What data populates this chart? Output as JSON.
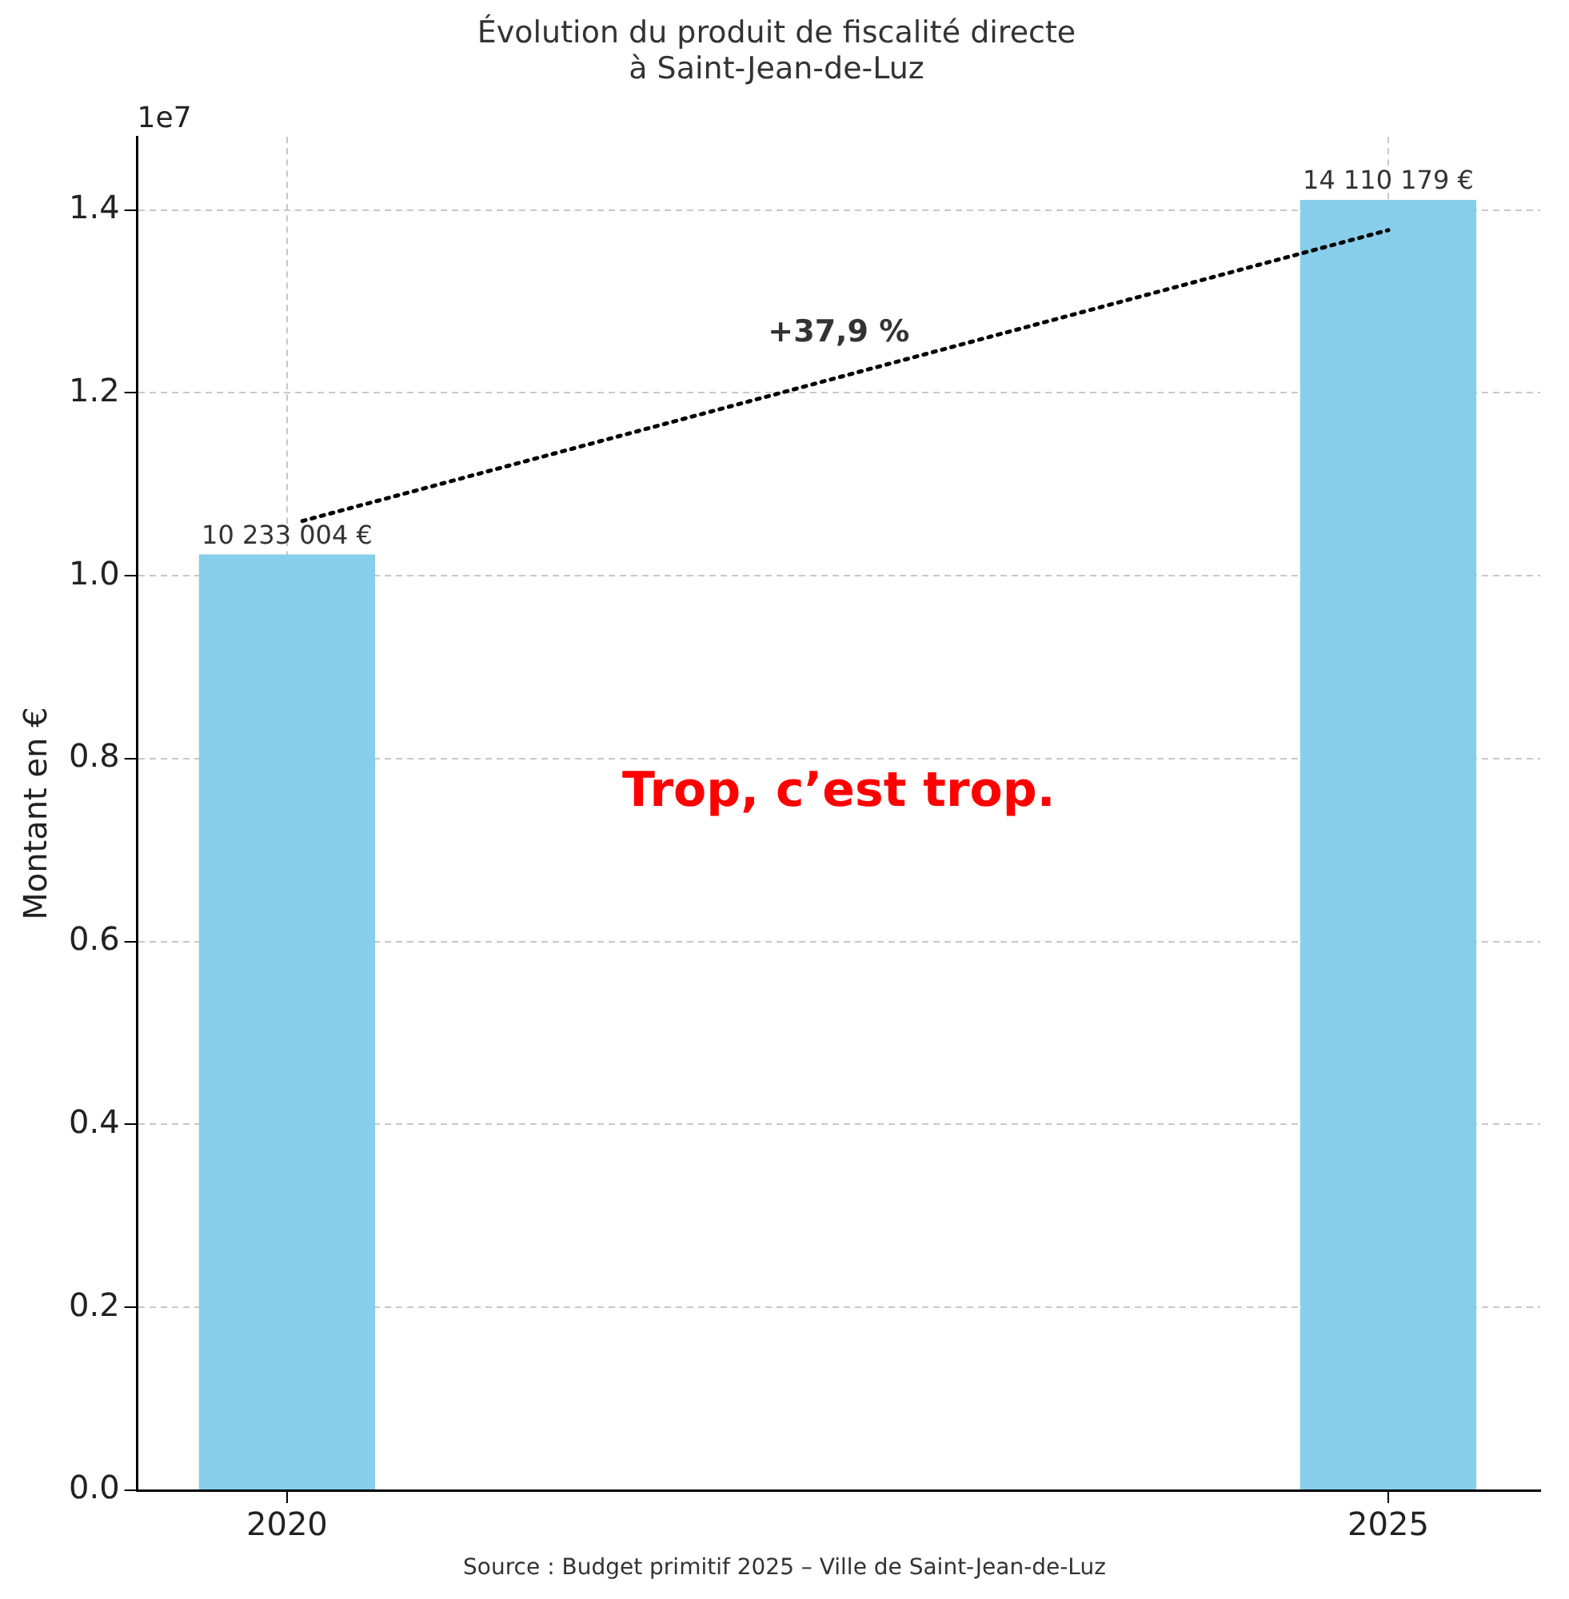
{
  "chart_data": {
    "type": "bar",
    "title": "Évolution du produit de fiscalité directe\nà Saint-Jean-de-Luz",
    "ylabel": "Montant en €",
    "x": [
      2020,
      2025
    ],
    "values": [
      1.0233004,
      1.4110179
    ],
    "color": "#87ceeb",
    "series": [
      {
        "type": "line",
        "x": [
          2020.07,
          2025
        ],
        "values": [
          1.06,
          1.378
        ],
        "color": "#000000",
        "line_style": "dotted",
        "marker": "none"
      }
    ],
    "xlim": [
      2019.32,
      2025.69
    ],
    "xticks": [
      2020,
      2025
    ],
    "ylim": [
      0,
      1.48
    ],
    "yticks": [
      {
        "value": 0,
        "label": "0.0"
      },
      {
        "value": 0.2,
        "label": "0.2"
      },
      {
        "value": 0.4,
        "label": "0.4"
      },
      {
        "value": 0.6,
        "label": "0.6"
      },
      {
        "value": 0.8,
        "label": "0.8"
      },
      {
        "value": 1,
        "label": "1.0"
      },
      {
        "value": 1.2,
        "label": "1.2"
      },
      {
        "value": 1.4,
        "label": "1.4"
      }
    ],
    "grid": true,
    "annotations": [
      {
        "text": "10 233 004 €",
        "x": 2020,
        "y": 1.0233004
      },
      {
        "text": "14 110 179 €",
        "x": 2025,
        "y": 1.4110179
      },
      "+37,9 %",
      "1e7",
      "Trop, c’est trop.",
      "Source : Budget primitif 2025 – Ville de Saint-Jean-de-Luz"
    ]
  }
}
